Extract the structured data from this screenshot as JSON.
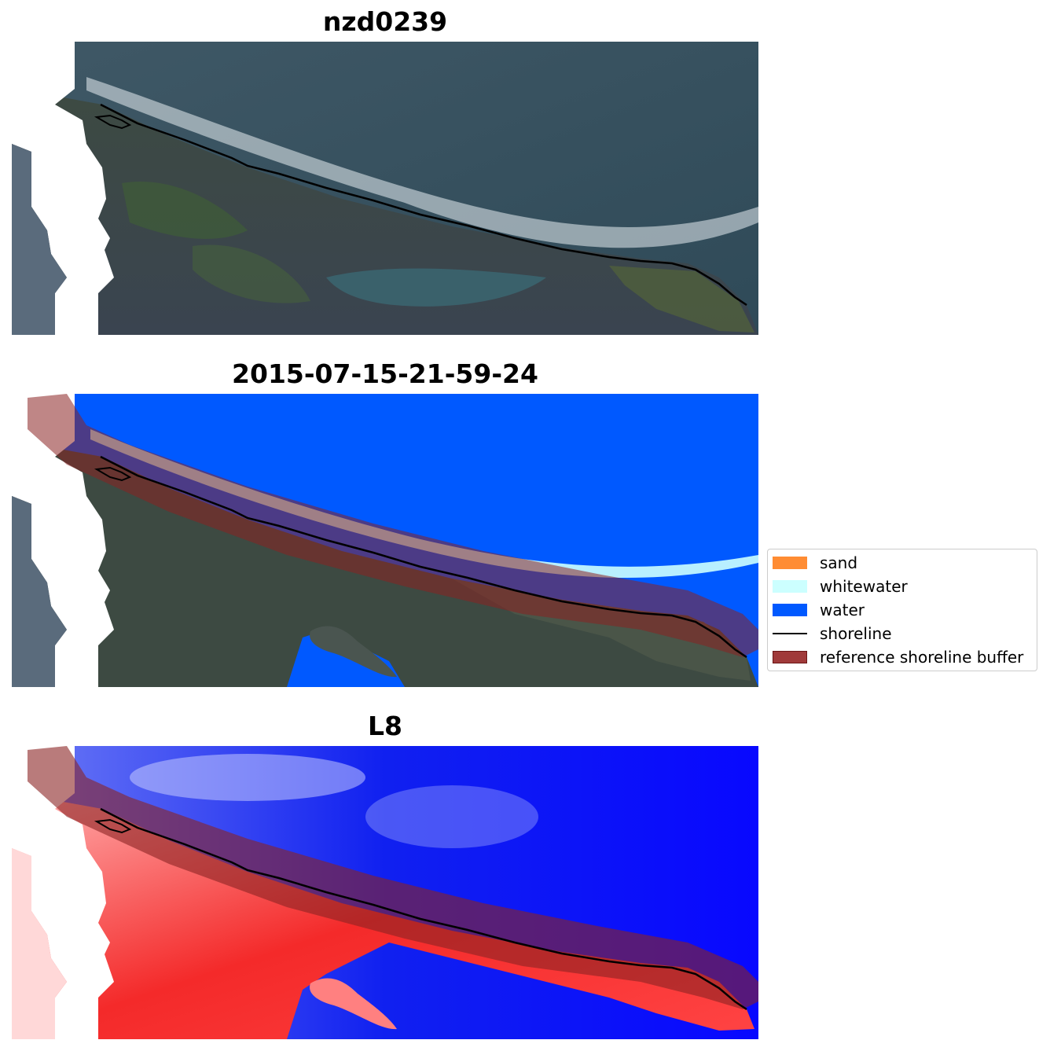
{
  "panels": [
    {
      "title": "nzd0239",
      "content": "rgb-image"
    },
    {
      "title": "2015-07-15-21-59-24",
      "content": "classified-image"
    },
    {
      "title": "L8",
      "content": "mndwi-image"
    }
  ],
  "legend": {
    "items": [
      {
        "label": "sand",
        "kind": "patch",
        "color": "#ff8c33"
      },
      {
        "label": "whitewater",
        "kind": "patch",
        "color": "#ccffff"
      },
      {
        "label": "water",
        "kind": "patch",
        "color": "#0059ff"
      },
      {
        "label": "shoreline",
        "kind": "line",
        "color": "#000000"
      },
      {
        "label": "reference shoreline buffer",
        "kind": "patch",
        "color": "#8b2323"
      }
    ]
  },
  "colors": {
    "water": "#0059ff",
    "whitewater": "#ccffff",
    "buffer": "#8b2323",
    "shoreline": "#000000",
    "nodata": "#ffffff"
  }
}
